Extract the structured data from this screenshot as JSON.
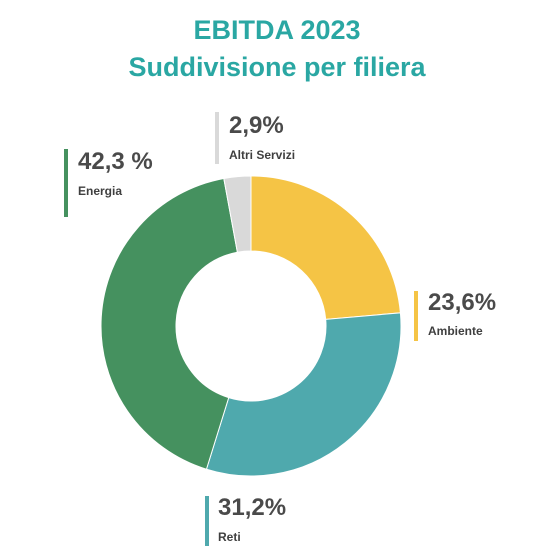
{
  "title": "EBITDA 2023",
  "subtitle": "Suddivisione per filiera",
  "chart_data": {
    "type": "pie",
    "title": "EBITDA 2023",
    "subtitle": "Suddivisione per filiera",
    "donut": true,
    "categories": [
      "Ambiente",
      "Reti",
      "Energia",
      "Altri Servizi"
    ],
    "values": [
      23.6,
      31.2,
      42.3,
      2.9
    ],
    "value_labels": [
      "23,6%",
      "31,2%",
      "42,3 %",
      "2,9%"
    ],
    "colors": [
      "#f5c445",
      "#4fa9ad",
      "#45915f",
      "#d9d9d9"
    ],
    "legend": "callouts"
  }
}
